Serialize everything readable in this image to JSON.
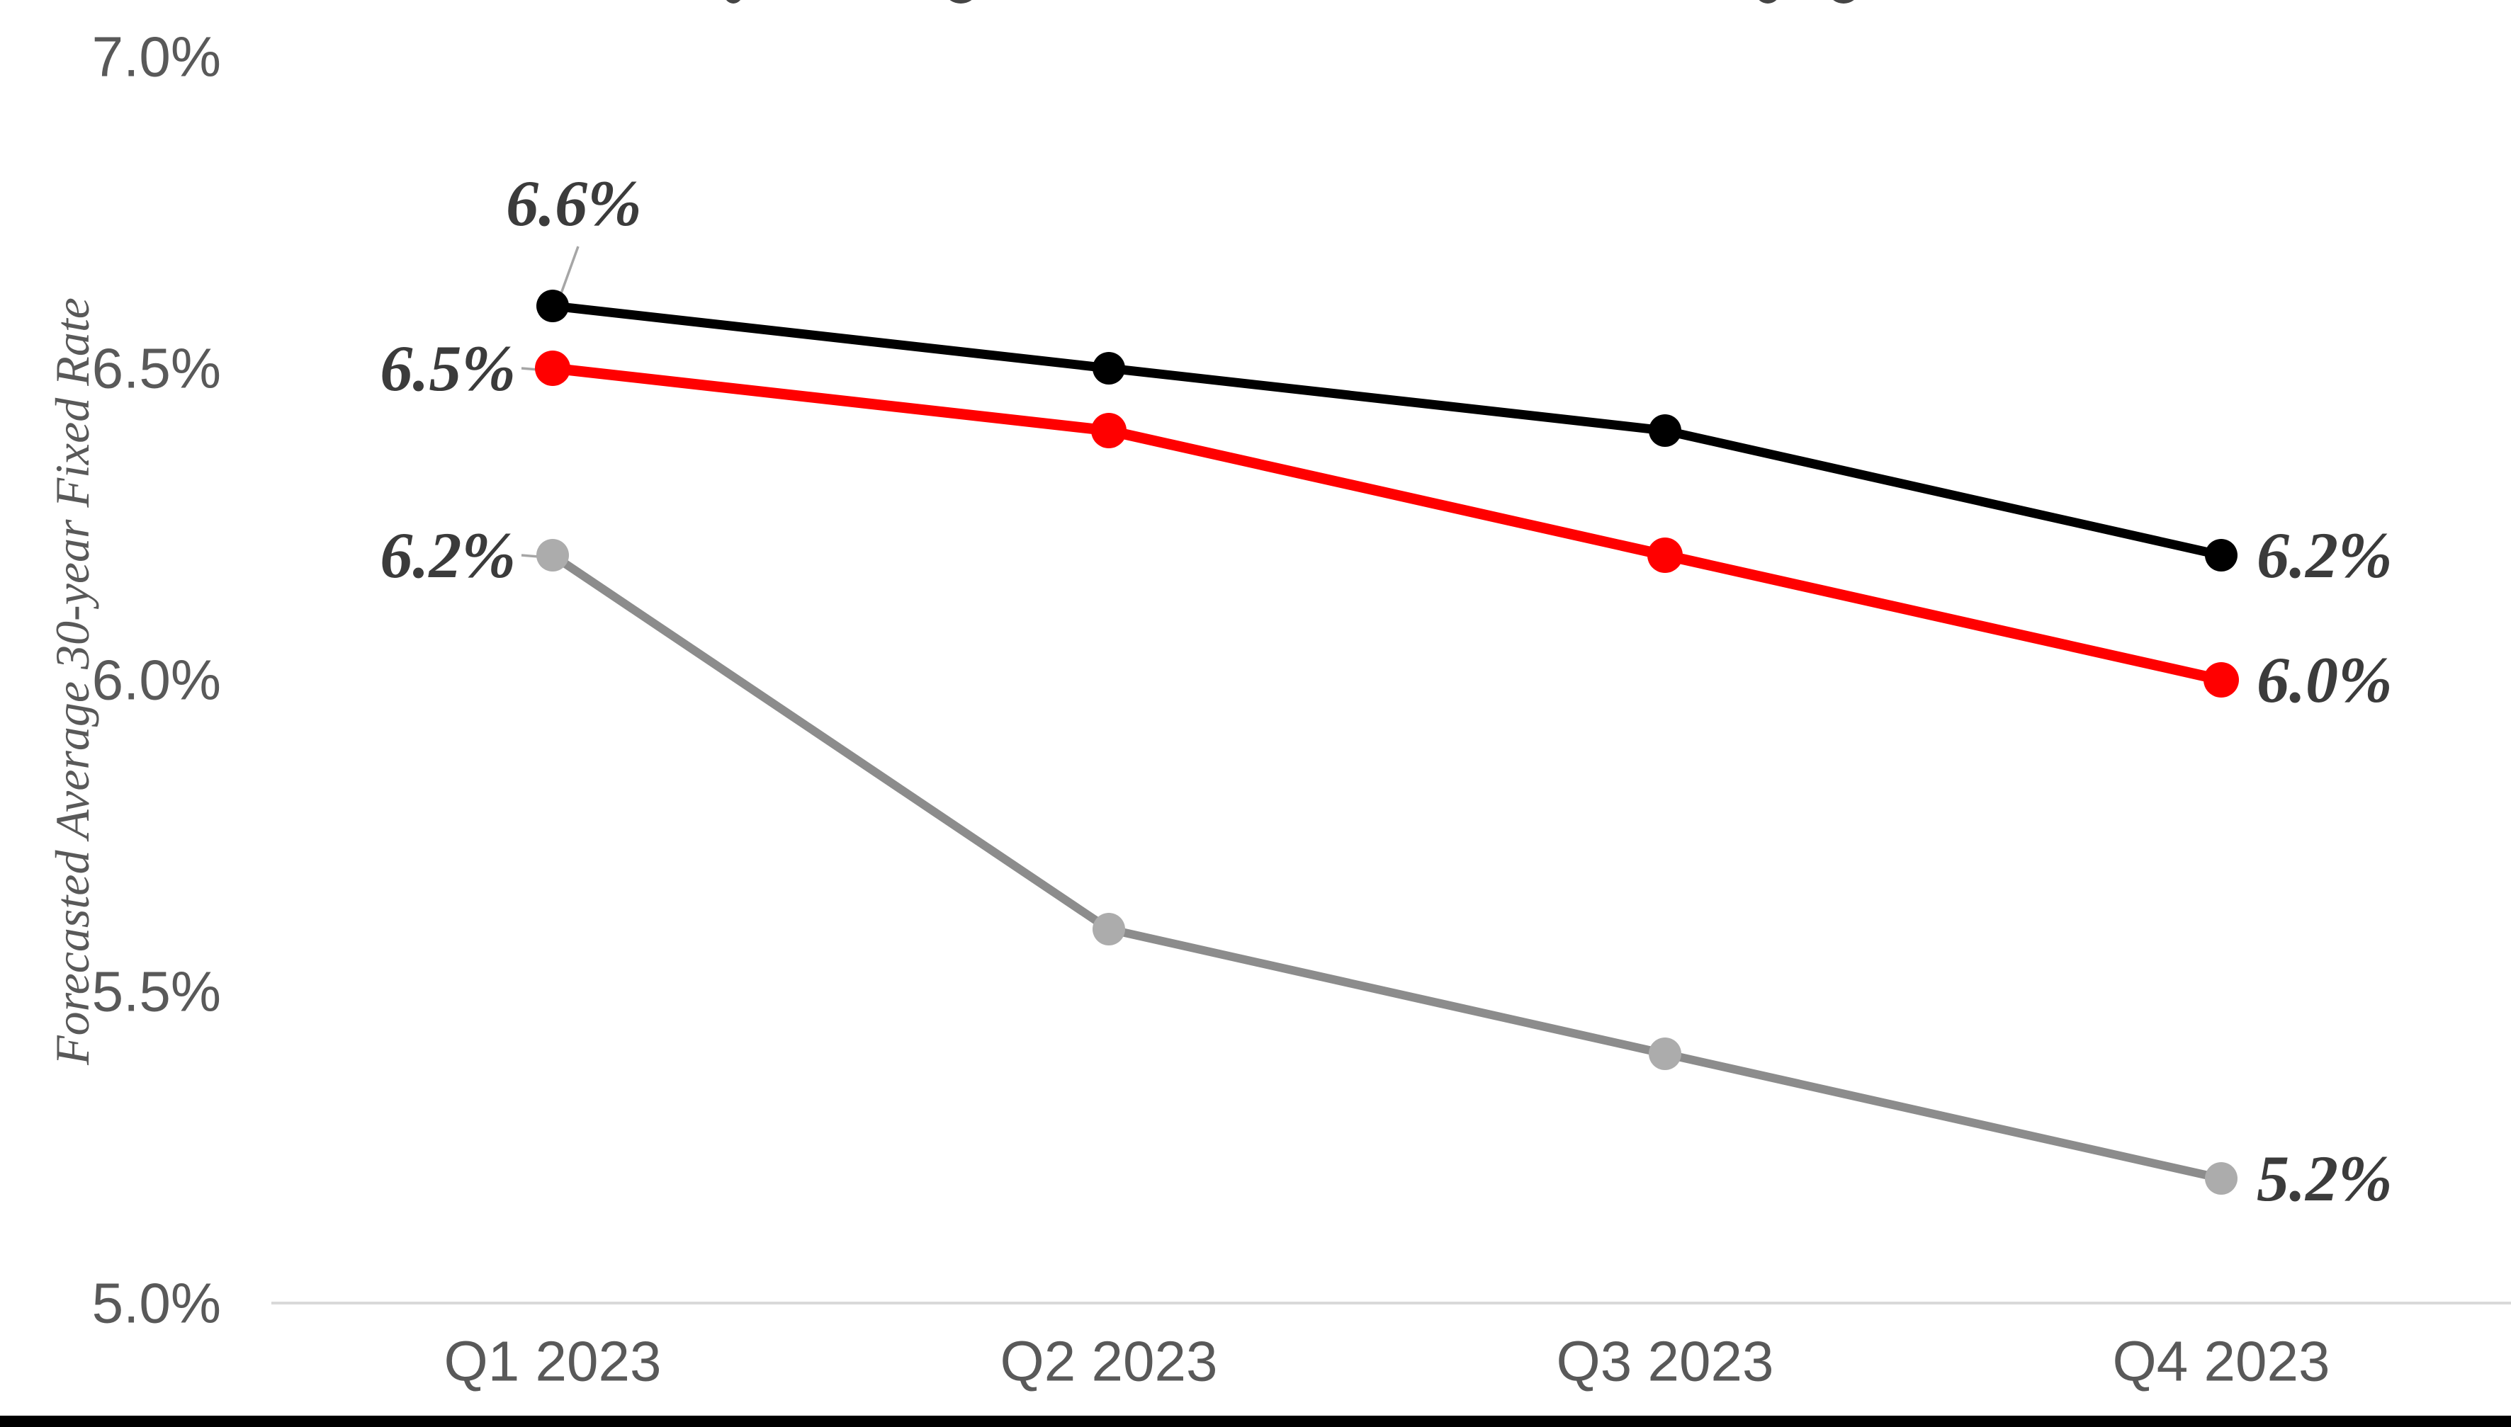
{
  "chart_data": {
    "type": "line",
    "title": "",
    "xlabel": "",
    "ylabel": "Forecasted Average 30-year Fixed Rate",
    "categories": [
      "Q1 2023",
      "Q2 2023",
      "Q3 2023",
      "Q4 2023"
    ],
    "ylim": [
      5.0,
      7.0
    ],
    "y_tick_step": 0.5,
    "grid": false,
    "legend": "none",
    "y_ticks": [
      {
        "label": "7.0%",
        "value": 7.0
      },
      {
        "label": "6.5%",
        "value": 6.5
      },
      {
        "label": "6.0%",
        "value": 6.0
      },
      {
        "label": "5.5%",
        "value": 5.5
      },
      {
        "label": "5.0%",
        "value": 5.0
      }
    ],
    "series": [
      {
        "name": "black-series",
        "line_color": "#000000",
        "marker_color": "#000000",
        "values": [
          6.6,
          6.5,
          6.4,
          6.2
        ],
        "first_label": {
          "text": "6.6%",
          "side": "above",
          "leader": true
        },
        "last_label": {
          "text": "6.2%",
          "side": "right",
          "leader": false
        }
      },
      {
        "name": "red-series",
        "line_color": "#FF0000",
        "marker_color": "#FF0000",
        "values": [
          6.5,
          6.4,
          6.2,
          6.0
        ],
        "first_label": {
          "text": "6.5%",
          "side": "left",
          "leader": true
        },
        "last_label": {
          "text": "6.0%",
          "side": "right",
          "leader": false
        }
      },
      {
        "name": "gray-series",
        "line_color": "#8C8C8C",
        "marker_color": "#ACACAC",
        "values": [
          6.2,
          5.6,
          5.4,
          5.2
        ],
        "first_label": {
          "text": "6.2%",
          "side": "left",
          "leader": true
        },
        "last_label": {
          "text": "5.2%",
          "side": "right",
          "leader": false
        }
      }
    ]
  },
  "colors": {
    "background": "#FFFFFF",
    "axis_line": "#D9D9D9",
    "tick_label": "#595959",
    "data_label": "#3B3B3B",
    "leader_line": "#A6A6A6",
    "bottom_bar": "#000000",
    "clipped_title_fragment": "#454545"
  },
  "clipped_title": {
    "note": "title cropped at top edge; only letter descender tips visible",
    "fragment_centers_x": [
      1035,
      1356,
      2495,
      2602
    ],
    "fragment_half_widths": [
      13,
      20,
      16,
      19
    ]
  }
}
